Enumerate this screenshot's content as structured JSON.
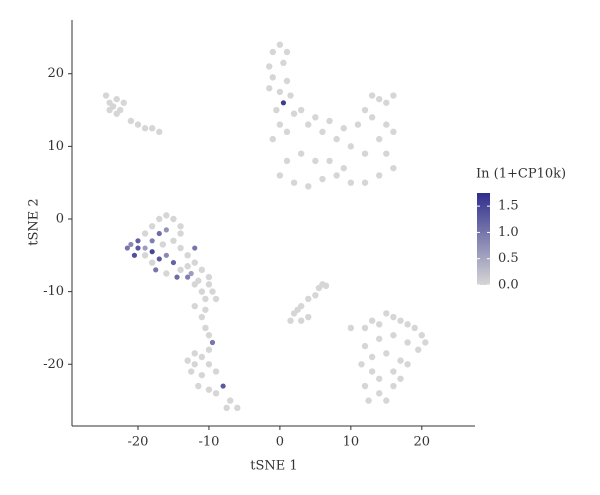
{
  "chart_data": {
    "type": "scatter",
    "x_label": "tSNE 1",
    "y_label": "tSNE 2",
    "xlim": [
      -29.3,
      27.5
    ],
    "ylim": [
      -28.5,
      27.4
    ],
    "xticks": [
      -20,
      -10,
      0,
      10,
      20
    ],
    "yticks": [
      -20,
      -10,
      0,
      10,
      20
    ],
    "x": [
      -24.5,
      -24,
      -23.5,
      -23,
      -22.5,
      -24,
      -23,
      -21,
      -20,
      -19,
      -18,
      -17,
      -22,
      -1,
      0,
      1,
      -1.5,
      0.5,
      -1,
      1,
      -1.5,
      0,
      1.5,
      0.5,
      -0.5,
      2,
      0,
      1,
      -1,
      3,
      4,
      5,
      6,
      7,
      8,
      9,
      10,
      11,
      12,
      13,
      14,
      15,
      16,
      13,
      15,
      16,
      14,
      12,
      15,
      16,
      14,
      12,
      10,
      8,
      6,
      4,
      2,
      0,
      1,
      3,
      5,
      7,
      9,
      -17,
      -16,
      -15,
      -14,
      -18,
      -19,
      -20,
      -21,
      -21.5,
      -20.5,
      -19,
      -18,
      -17,
      -16,
      -15,
      -14,
      -13,
      -12,
      -11,
      -10,
      -9.5,
      -10.5,
      -12,
      -13,
      -14,
      -15,
      -16,
      -17,
      -18,
      -19,
      -17.5,
      -16,
      -14.5,
      -12.5,
      -11,
      -12,
      -14,
      -18,
      -20,
      -16.5,
      -13,
      -10,
      -9,
      -11.5,
      -12,
      -11,
      -10.5,
      -10,
      -9.5,
      -10,
      -11,
      -12,
      -13,
      -12.5,
      -11,
      -10,
      -9,
      -11.5,
      -10,
      -9,
      -8,
      -7,
      -6,
      -7.5,
      -12,
      -10.5,
      6,
      5.5,
      6.5,
      5,
      4,
      3,
      2,
      1.5,
      3,
      4,
      2.5,
      12,
      13,
      14,
      15,
      16,
      17,
      18,
      19,
      20,
      20.5,
      19.5,
      18,
      16,
      14,
      12,
      13,
      15,
      17,
      18,
      16,
      14,
      13,
      12,
      14,
      15,
      16,
      17,
      11.5,
      12.5,
      10
    ],
    "y": [
      17,
      16,
      15.5,
      16.5,
      15,
      15,
      14.5,
      13.5,
      13,
      12.5,
      12.5,
      12,
      16,
      23,
      24,
      23,
      21,
      21.5,
      19.5,
      19,
      18,
      17.5,
      17,
      16,
      15,
      14.5,
      13,
      12,
      11,
      15,
      13,
      14,
      12,
      13.5,
      11,
      12.5,
      10,
      13,
      15,
      17,
      16.5,
      16,
      17,
      14,
      13,
      12,
      11,
      9,
      9,
      7,
      6,
      5,
      5,
      6,
      5.5,
      4.5,
      5,
      6,
      8,
      9,
      8,
      8,
      7,
      0,
      0.5,
      0,
      -1,
      -1,
      -2,
      -3,
      -3.5,
      -4,
      -5,
      -4,
      -3,
      -2,
      -1.5,
      -3,
      -4,
      -5,
      -6,
      -7,
      -8,
      -10,
      -11,
      -9,
      -8,
      -7,
      -6,
      -5,
      -5.5,
      -6,
      -5,
      -7,
      -7.5,
      -8,
      -7.5,
      -10,
      -4,
      -2,
      -4.5,
      -4,
      -3.5,
      -6.5,
      -9,
      -11,
      -8.5,
      -12,
      -13.5,
      -15,
      -16,
      -17,
      -18,
      -19,
      -20,
      -19.5,
      -21,
      -21.5,
      -20,
      -21,
      -23,
      -23.5,
      -24,
      -23,
      -25,
      -26,
      -26,
      -18.5,
      -12.5,
      -9,
      -9.5,
      -9.2,
      -10.5,
      -11,
      -12,
      -13,
      -14,
      -14,
      -13.5,
      -12.5,
      -15,
      -14,
      -14.5,
      -13,
      -13.5,
      -14,
      -14.5,
      -15,
      -16,
      -17,
      -18,
      -17,
      -16,
      -16.5,
      -17.5,
      -19,
      -18.5,
      -19.5,
      -20,
      -21,
      -22,
      -21,
      -23,
      -24,
      -25,
      -23,
      -22,
      -20,
      -25,
      -15
    ],
    "expression": [
      0,
      0,
      0,
      0,
      0,
      0,
      0,
      0,
      0,
      0,
      0,
      0,
      0,
      0,
      0,
      0,
      0,
      0,
      0,
      0,
      0,
      0,
      0,
      1.6,
      0,
      0,
      0,
      0,
      0,
      0,
      0,
      0,
      0,
      0,
      0,
      0,
      0,
      0,
      0,
      0,
      0,
      0,
      0,
      0,
      0,
      0,
      0,
      0,
      0,
      0,
      0,
      0,
      0,
      0,
      0,
      0,
      0,
      0,
      0,
      0,
      0,
      0,
      0,
      0,
      0,
      0,
      0,
      0,
      0,
      1.2,
      0.8,
      1.0,
      1.4,
      0.6,
      0.9,
      1.1,
      0.7,
      0,
      0,
      0,
      0,
      0,
      0,
      0,
      0,
      0,
      0.9,
      0,
      1.2,
      0.8,
      1.3,
      0,
      0,
      1.0,
      0,
      1.1,
      0.6,
      0,
      1.0,
      0,
      1.5,
      1.3,
      0,
      0,
      0,
      0,
      0,
      0,
      0,
      0,
      0,
      1.0,
      0,
      0,
      0,
      0,
      0,
      0,
      0,
      0,
      0,
      0,
      0,
      1.3,
      0,
      0,
      0,
      0,
      0,
      0,
      0,
      0,
      0,
      0,
      0,
      0,
      0,
      0,
      0,
      0,
      0,
      0,
      0,
      0,
      0,
      0,
      0,
      0,
      0,
      0,
      0,
      0,
      0,
      0,
      0,
      0,
      0,
      0,
      0,
      0,
      0,
      0,
      0,
      0,
      0,
      0,
      0,
      0,
      0,
      0
    ],
    "colorbar": {
      "title": "In (1+CP10k)",
      "lim": [
        0,
        1.75
      ],
      "ticks": [
        0.0,
        0.5,
        1.0,
        1.5
      ],
      "tick_labels": [
        "0.0",
        "0.5",
        "1.0",
        "1.5"
      ],
      "low_color": "#d6d6d6",
      "high_color": "#2e2e8c"
    }
  }
}
